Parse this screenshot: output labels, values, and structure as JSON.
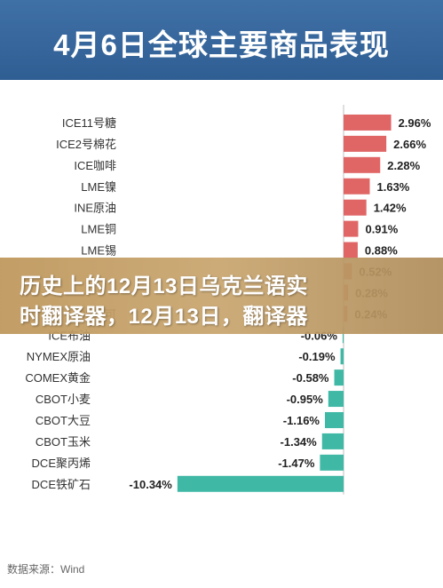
{
  "header": {
    "title": "4月6日全球主要商品表现"
  },
  "overlay": {
    "line1": "历史上的12月13日乌克兰语实",
    "line2": "时翻译器，12月13日，翻译器"
  },
  "source": "数据来源：Wind",
  "colors": {
    "positive": "#e06666",
    "negative": "#3fb8a5",
    "header": "#3566a0"
  },
  "chart_data": {
    "type": "bar",
    "orientation": "horizontal",
    "title": "4月6日全球主要商品表现",
    "categories": [
      "ICE11号糖",
      "ICE2号棉花",
      "ICE咖啡",
      "LME镍",
      "INE原油",
      "LME铜",
      "LME锡",
      "",
      "",
      "ICE可可",
      "ICE布油",
      "NYMEX原油",
      "COMEX黄金",
      "CBOT小麦",
      "CBOT大豆",
      "CBOT玉米",
      "DCE聚丙烯",
      "DCE铁矿石"
    ],
    "values": [
      2.96,
      2.66,
      2.28,
      1.63,
      1.42,
      0.91,
      0.88,
      0.52,
      0.28,
      0.24,
      -0.06,
      -0.19,
      -0.58,
      -0.95,
      -1.16,
      -1.34,
      -1.47,
      -10.34
    ],
    "value_labels": [
      "2.96%",
      "2.66%",
      "2.28%",
      "1.63%",
      "1.42%",
      "0.91%",
      "0.88%",
      "0.52%",
      "0.28%",
      "0.24%",
      "-0.06%",
      "-0.19%",
      "-0.58%",
      "-0.95%",
      "-1.16%",
      "-1.34%",
      "-1.47%",
      "-10.34%"
    ],
    "unit": "%",
    "xlim": [
      -10.34,
      2.96
    ],
    "grid": false
  }
}
